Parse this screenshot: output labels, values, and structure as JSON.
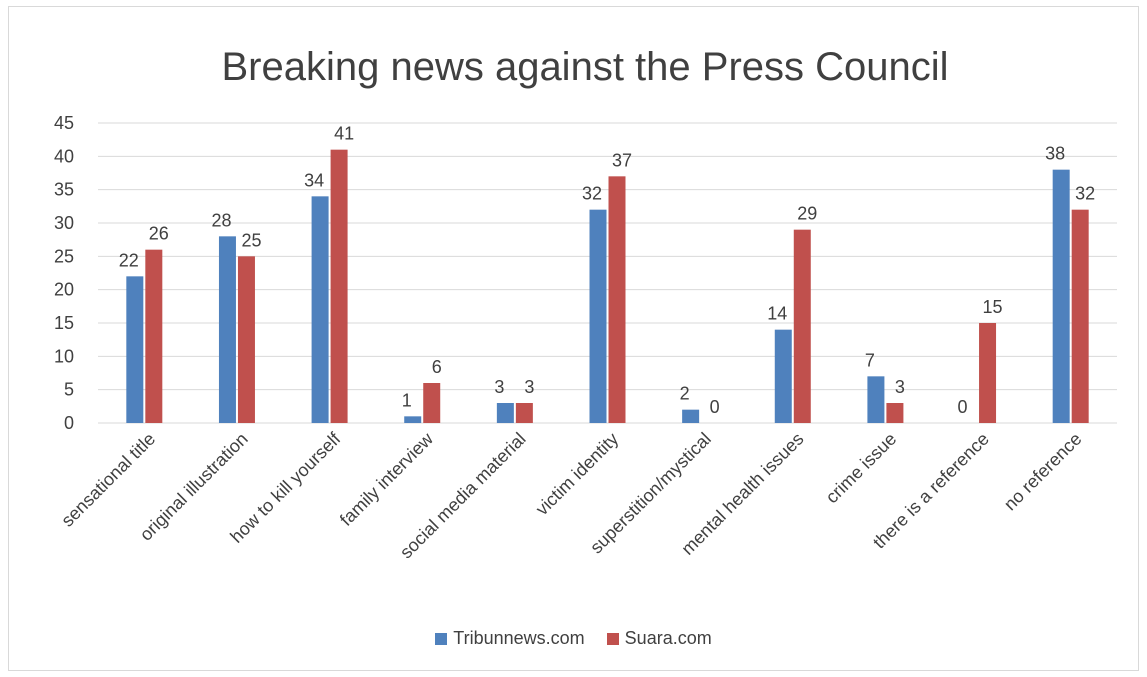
{
  "chart_data": {
    "type": "bar",
    "title": "Breaking news against the Press Council",
    "xlabel": "",
    "ylabel": "",
    "ylim": [
      0,
      45
    ],
    "yticks": [
      0,
      5,
      10,
      15,
      20,
      25,
      30,
      35,
      40,
      45
    ],
    "grid": true,
    "legend_position": "bottom",
    "categories": [
      "sensational title",
      "original illustration",
      "how to kill yourself",
      "family interview",
      "social media material",
      "victim identity",
      "superstition/mystical",
      "mental health issues",
      "crime issue",
      "there is a reference",
      "no reference"
    ],
    "series": [
      {
        "name": "Tribunnews.com",
        "color": "#4f81bd",
        "values": [
          22,
          28,
          34,
          1,
          3,
          32,
          2,
          14,
          7,
          0,
          38
        ]
      },
      {
        "name": "Suara.com",
        "color": "#c0504d",
        "values": [
          26,
          25,
          41,
          6,
          3,
          37,
          0,
          29,
          3,
          15,
          32
        ]
      }
    ]
  }
}
